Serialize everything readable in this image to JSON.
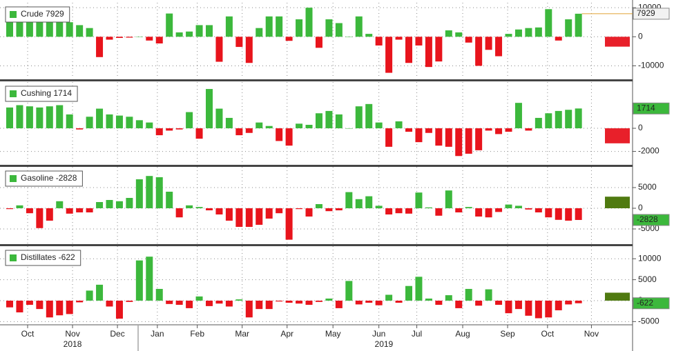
{
  "chart_data": [
    {
      "type": "bar",
      "title": "Crude 7929",
      "color_up": "#3cb83c",
      "color_down": "#e8141c",
      "ylim": [
        -14400,
        11700
      ],
      "yticks": [
        10000,
        0,
        -10000
      ],
      "grid": true,
      "forecast": -3400,
      "forecast_color": "#e8202a",
      "last_line_color": "#e0a030",
      "tag_color": "#f2f2f2",
      "values": [
        5000,
        5000,
        5000,
        7000,
        5000,
        5000,
        5000,
        4000,
        3000,
        -7000,
        -1000,
        -400,
        -300,
        0,
        -1300,
        -2300,
        8000,
        1500,
        1800,
        4000,
        4000,
        -8600,
        7000,
        -3500,
        -9000,
        3000,
        7000,
        7000,
        -1400,
        6000,
        10000,
        -3800,
        6000,
        4700,
        0,
        7000,
        1000,
        -3000,
        -12400,
        -1000,
        -9000,
        -3000,
        -10400,
        -8500,
        2200,
        1500,
        -2000,
        -10000,
        -4500,
        -6700,
        1000,
        2500,
        3000,
        3200,
        9500,
        -1300,
        6000,
        7929
      ]
    },
    {
      "type": "bar",
      "title": "Cushing 1714",
      "color_up": "#3cb83c",
      "color_down": "#e8141c",
      "ylim": [
        -3100,
        4000
      ],
      "yticks": [
        0,
        -2000
      ],
      "grid": true,
      "forecast": -1300,
      "forecast_color": "#e8202a",
      "tag_color": "#3cb83c",
      "values": [
        1800,
        2000,
        1900,
        1800,
        1900,
        2000,
        1200,
        -100,
        1000,
        1700,
        1200,
        1100,
        1000,
        700,
        500,
        -600,
        -200,
        -100,
        1400,
        -900,
        3400,
        1700,
        900,
        -600,
        -400,
        500,
        200,
        -1100,
        -1500,
        400,
        300,
        1300,
        1500,
        1200,
        0,
        1900,
        2100,
        500,
        -1600,
        600,
        -300,
        -1200,
        -400,
        -1500,
        -1600,
        -2400,
        -2200,
        -1900,
        -200,
        -500,
        -300,
        2200,
        -200,
        900,
        1300,
        1500,
        1600,
        1714
      ]
    },
    {
      "type": "bar",
      "title": "Gasoline -2828",
      "color_up": "#3cb83c",
      "color_down": "#e8141c",
      "ylim": [
        -8500,
        10000
      ],
      "yticks": [
        5000,
        0,
        -5000
      ],
      "grid": true,
      "forecast": 2800,
      "forecast_color": "#4f7a10",
      "tag_color": "#3cb83c",
      "values": [
        -200,
        700,
        -1200,
        -4800,
        -3000,
        1700,
        -1300,
        -1000,
        -1000,
        1500,
        2000,
        1700,
        2500,
        7000,
        7800,
        7500,
        4000,
        -2200,
        700,
        300,
        -500,
        -1500,
        -3000,
        -4500,
        -4500,
        -4000,
        -2500,
        -1200,
        -7600,
        -200,
        -2000,
        1000,
        -700,
        -500,
        3900,
        2200,
        2900,
        600,
        -1500,
        -1200,
        -1300,
        3800,
        200,
        -1800,
        4300,
        -1000,
        300,
        -2000,
        -2200,
        -900,
        900,
        600,
        -300,
        -1000,
        -2200,
        -2800,
        -3000,
        -2828
      ]
    },
    {
      "type": "bar",
      "title": "Distillates -622",
      "color_up": "#3cb83c",
      "color_down": "#e8141c",
      "ylim": [
        -5600,
        13000
      ],
      "yticks": [
        10000,
        5000,
        0,
        -5000
      ],
      "grid": true,
      "forecast": 1900,
      "forecast_color": "#4f7a10",
      "tag_color": "#3cb83c",
      "values": [
        -1600,
        -2800,
        -1000,
        -2000,
        -4000,
        -3500,
        -3200,
        -400,
        2400,
        3800,
        -1400,
        -4300,
        -300,
        9600,
        10500,
        2800,
        -800,
        -1000,
        -1800,
        1000,
        -1300,
        -700,
        -1400,
        300,
        -4000,
        -2000,
        -2000,
        -200,
        -500,
        -700,
        -1000,
        -300,
        500,
        -1800,
        4700,
        -900,
        -500,
        -1100,
        1400,
        -500,
        3500,
        5700,
        500,
        -1000,
        1300,
        -1800,
        2800,
        -1200,
        2700,
        -1000,
        -3000,
        -2000,
        -3600,
        -4200,
        -4000,
        -2300,
        -900,
        -622
      ],
      "xticks": [
        {
          "value": 1.8,
          "label": "Oct"
        },
        {
          "value": 6.3,
          "label": "Nov"
        },
        {
          "value": 10.8,
          "label": "Dec"
        },
        {
          "value": 14.8,
          "label": "Jan"
        },
        {
          "value": 18.8,
          "label": "Feb"
        },
        {
          "value": 23.3,
          "label": "Mar"
        },
        {
          "value": 27.8,
          "label": "Apr"
        },
        {
          "value": 32.4,
          "label": "May"
        },
        {
          "value": 37,
          "label": "Jun"
        },
        {
          "value": 40.8,
          "label": "Jul"
        },
        {
          "value": 45.4,
          "label": "Aug"
        },
        {
          "value": 49.9,
          "label": "Sep"
        },
        {
          "value": 53.9,
          "label": "Oct"
        },
        {
          "value": 58.3,
          "label": "Nov"
        }
      ],
      "year_ticks": [
        {
          "value": 6.3,
          "label": "2018"
        },
        {
          "value": 37.5,
          "label": "2019"
        }
      ]
    }
  ]
}
